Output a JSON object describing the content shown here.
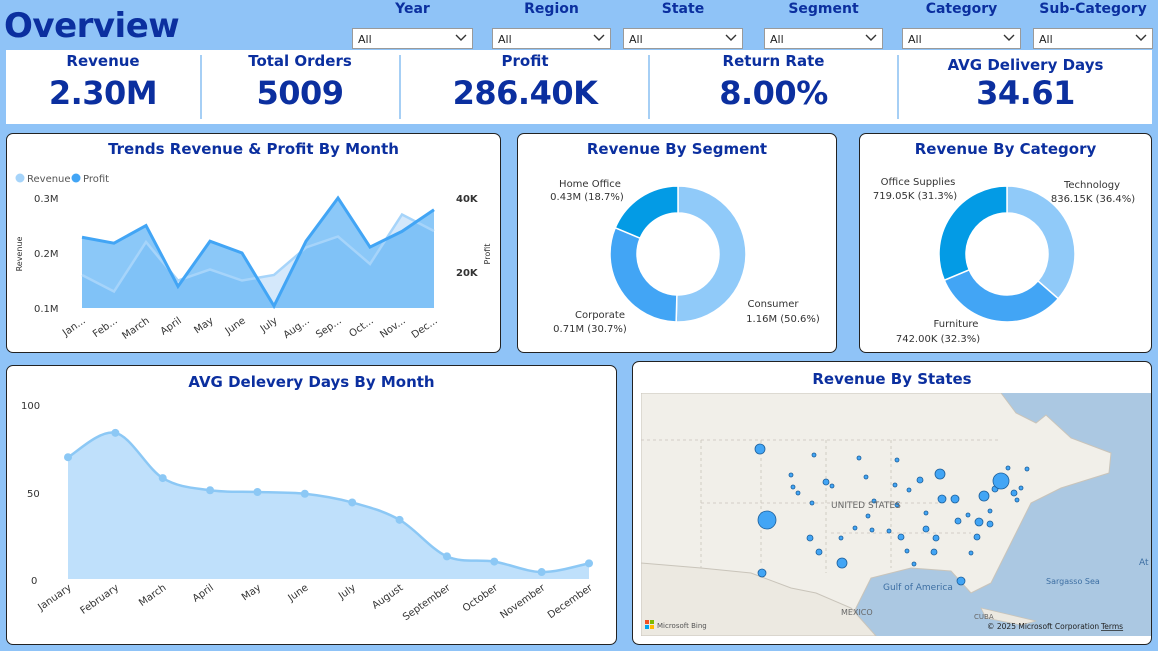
{
  "header": {
    "title": "Overview"
  },
  "filters": [
    {
      "label": "Year",
      "value": "All"
    },
    {
      "label": "Region",
      "value": "All"
    },
    {
      "label": "State",
      "value": "All"
    },
    {
      "label": "Segment",
      "value": "All"
    },
    {
      "label": "Category",
      "value": "All"
    },
    {
      "label": "Sub-Category",
      "value": "All"
    }
  ],
  "kpis": [
    {
      "label": "Revenue",
      "value": "2.30M"
    },
    {
      "label": "Total Orders",
      "value": "5009"
    },
    {
      "label": "Profit",
      "value": "286.40K"
    },
    {
      "label": "Return Rate",
      "value": "8.00%"
    },
    {
      "label": "AVG Delivery Days",
      "value": "34.61"
    }
  ],
  "colors": {
    "accent": "#0b2f9f",
    "background": "#8fc3f7",
    "revenue": "#a6d4fa",
    "profit": "#42a5f5"
  },
  "trend": {
    "title": "Trends Revenue & Profit By Month",
    "legend": [
      "Revenue",
      "Profit"
    ],
    "ylabel": "Revenue",
    "y2label": "Profit",
    "yticks": [
      "0.3M",
      "0.2M",
      "0.1M"
    ],
    "y2ticks": [
      "40K",
      "20K"
    ],
    "xticks": [
      "Jan...",
      "Feb...",
      "March",
      "April",
      "May",
      "June",
      "July",
      "Aug...",
      "Sep...",
      "Oct...",
      "Nov...",
      "Dec..."
    ]
  },
  "segment": {
    "title": "Revenue By Segment",
    "labels": [
      {
        "name": "Home Office",
        "value": "0.43M (18.7%)"
      },
      {
        "name": "Corporate",
        "value": "0.71M (30.7%)"
      },
      {
        "name": "Consumer",
        "value": "1.16M (50.6%)"
      }
    ]
  },
  "category": {
    "title": "Revenue By Category",
    "labels": [
      {
        "name": "Office Supplies",
        "value": "719.05K (31.3%)"
      },
      {
        "name": "Technology",
        "value": "836.15K (36.4%)"
      },
      {
        "name": "Furniture",
        "value": "742.00K (32.3%)"
      }
    ]
  },
  "delivery": {
    "title": "AVG Delevery Days By Month",
    "yticks": [
      "100",
      "50",
      "0"
    ],
    "xticks": [
      "January",
      "February",
      "March",
      "April",
      "May",
      "June",
      "July",
      "August",
      "September",
      "October",
      "November",
      "December"
    ]
  },
  "map": {
    "title": "Revenue By States",
    "labels": {
      "country": "UNITED STATES",
      "gulf": "Gulf of America",
      "mexico": "MEXICO",
      "sargasso": "Sargasso Sea",
      "cuba": "CUBA",
      "atlantic": "At",
      "bing": "Microsoft Bing",
      "copyright": "© 2025 Microsoft Corporation",
      "terms": "Terms"
    }
  },
  "chart_data": [
    {
      "type": "area",
      "title": "Trends Revenue & Profit By Month",
      "categories": [
        "Jan...",
        "Feb...",
        "March",
        "April",
        "May",
        "June",
        "July",
        "Aug...",
        "Sep...",
        "Oct...",
        "Nov...",
        "Dec..."
      ],
      "series": [
        {
          "name": "Revenue",
          "axis": "left",
          "values": [
            0.16,
            0.13,
            0.22,
            0.15,
            0.17,
            0.15,
            0.16,
            0.21,
            0.23,
            0.18,
            0.27,
            0.24
          ]
        },
        {
          "name": "Profit",
          "axis": "right",
          "values": [
            31000,
            29500,
            34000,
            18500,
            30000,
            27000,
            13500,
            30000,
            41000,
            28500,
            32500,
            38000
          ]
        }
      ],
      "ylabel": "Revenue",
      "y2label": "Profit",
      "ylim": [
        0.1,
        0.3
      ],
      "y2lim": [
        13000,
        41000
      ]
    },
    {
      "type": "pie",
      "title": "Revenue By Segment",
      "categories": [
        "Consumer",
        "Corporate",
        "Home Office"
      ],
      "values": [
        1.16,
        0.71,
        0.43
      ],
      "percent": [
        50.6,
        30.7,
        18.7
      ],
      "colors": [
        "#90caf9",
        "#42a5f5",
        "#039be5"
      ]
    },
    {
      "type": "pie",
      "title": "Revenue By Category",
      "categories": [
        "Technology",
        "Furniture",
        "Office Supplies"
      ],
      "values": [
        836.15,
        742.0,
        719.05
      ],
      "percent": [
        36.4,
        32.3,
        31.3
      ],
      "colors": [
        "#90caf9",
        "#42a5f5",
        "#039be5"
      ]
    },
    {
      "type": "area",
      "title": "AVG Delevery Days By Month",
      "categories": [
        "January",
        "February",
        "March",
        "April",
        "May",
        "June",
        "July",
        "August",
        "September",
        "October",
        "November",
        "December"
      ],
      "values": [
        70,
        84,
        58,
        51,
        50,
        49,
        44,
        34,
        13,
        10,
        4,
        9
      ],
      "ylim": [
        0,
        100
      ]
    }
  ]
}
